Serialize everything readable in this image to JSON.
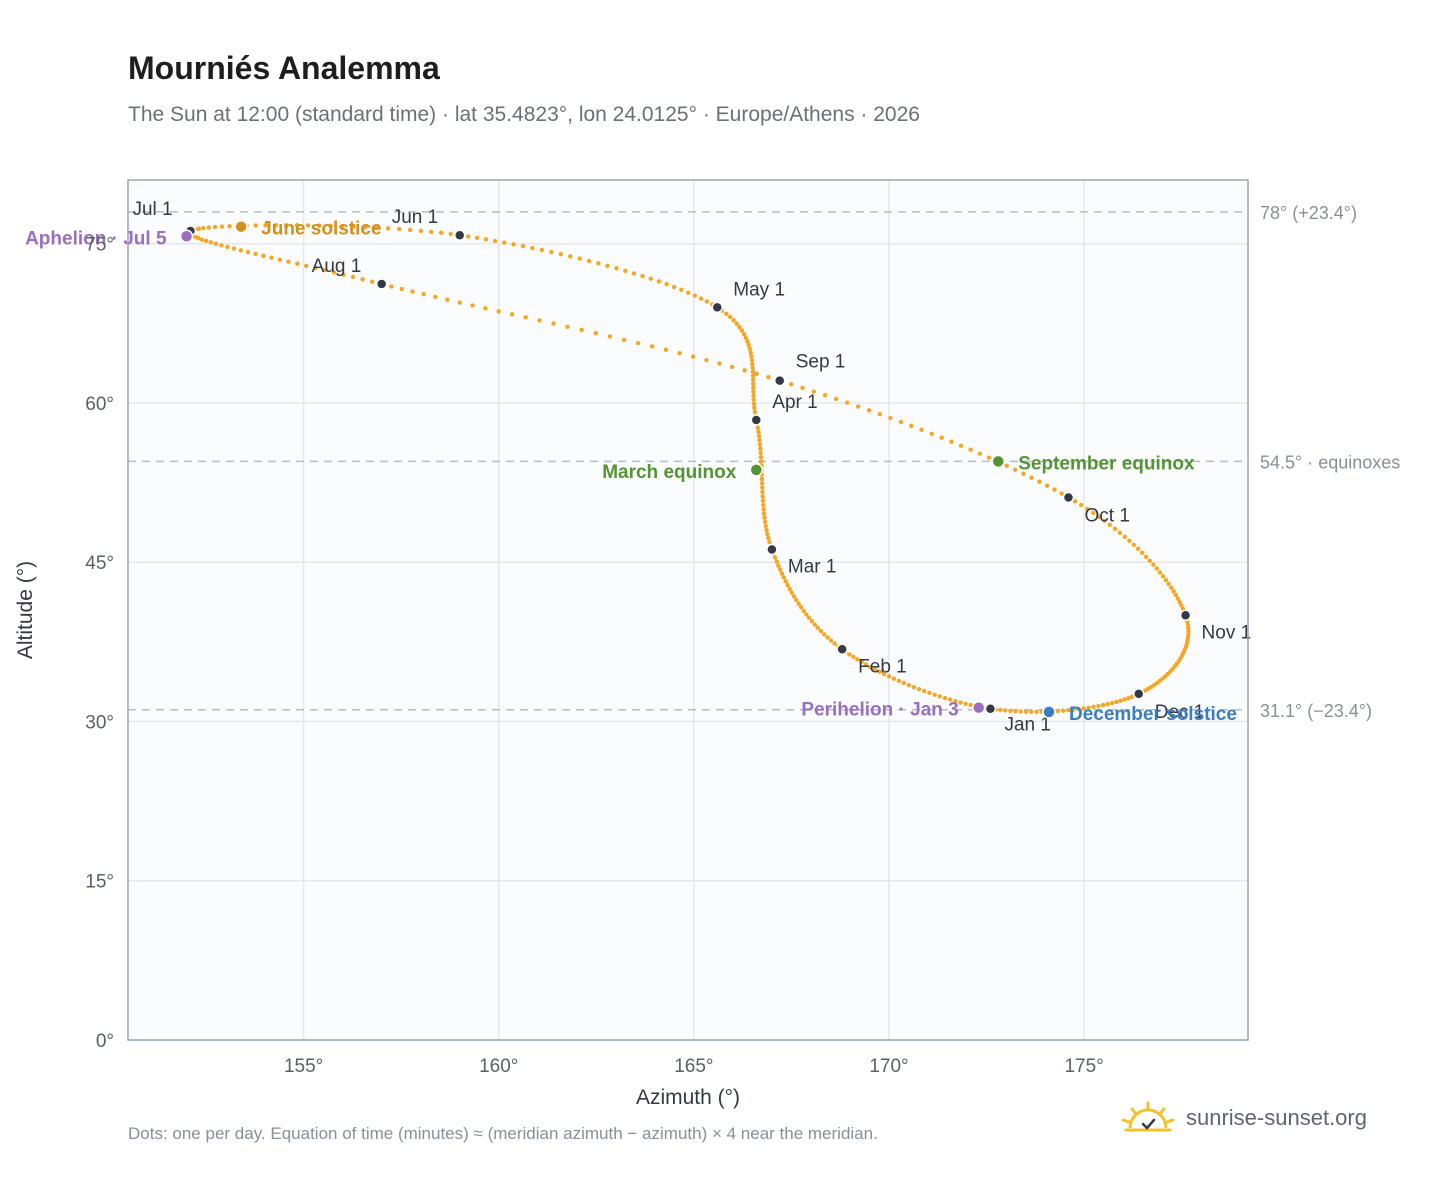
{
  "title": "Mourniés Analemma",
  "subtitle": "The Sun at 12:00 (standard time) · lat 35.4823°, lon 24.0125° · Europe/Athens · 2026",
  "footnote": "Dots: one per day. Equation of time (minutes) ≈ (meridian azimuth − azimuth) × 4 near the meridian.",
  "brand": {
    "text": "sunrise-sunset.org",
    "icon": "sun-logo-icon"
  },
  "colors": {
    "curve": "#f5a623",
    "month": "#333a44",
    "june": "#d4901c",
    "equinox": "#559433",
    "december": "#3a7ec2",
    "aphelion": "#9b6ec1",
    "grid": "#e4e8ee",
    "plot_bg": "#fafcfe",
    "frame": "#9aa6b4",
    "refline": "#b3bfcc"
  },
  "chart_data": {
    "type": "scatter",
    "xlabel": "Azimuth (°)",
    "ylabel": "Altitude (°)",
    "xlim": [
      150.5,
      179.2
    ],
    "ylim": [
      0,
      81
    ],
    "x_ticks": [
      155,
      160,
      165,
      170,
      175
    ],
    "x_tick_labels": [
      "155°",
      "160°",
      "165°",
      "170°",
      "175°"
    ],
    "y_ticks": [
      0,
      15,
      30,
      45,
      60,
      75
    ],
    "y_tick_labels": [
      "0°",
      "15°",
      "30°",
      "45°",
      "60°",
      "75°"
    ],
    "grid": true,
    "reference_lines": [
      {
        "y": 78.0,
        "label": "78° (+23.4°)"
      },
      {
        "y": 54.5,
        "label": "54.5° · equinoxes"
      },
      {
        "y": 31.1,
        "label": "31.1° (−23.4°)"
      }
    ],
    "series": [
      {
        "name": "",
        "daily": true,
        "monthly_points": [
          {
            "date": "Jan 1",
            "azimuth": 172.6,
            "altitude": 31.2
          },
          {
            "date": "Feb 1",
            "azimuth": 168.8,
            "altitude": 36.8
          },
          {
            "date": "Mar 1",
            "azimuth": 167.0,
            "altitude": 46.2
          },
          {
            "date": "Apr 1",
            "azimuth": 166.6,
            "altitude": 58.4
          },
          {
            "date": "May 1",
            "azimuth": 165.6,
            "altitude": 69.0
          },
          {
            "date": "Jun 1",
            "azimuth": 159.0,
            "altitude": 75.8
          },
          {
            "date": "Jul 1",
            "azimuth": 152.1,
            "altitude": 76.2
          },
          {
            "date": "Aug 1",
            "azimuth": 157.0,
            "altitude": 71.2
          },
          {
            "date": "Sep 1",
            "azimuth": 167.2,
            "altitude": 62.1
          },
          {
            "date": "Oct 1",
            "azimuth": 174.6,
            "altitude": 51.1
          },
          {
            "date": "Nov 1",
            "azimuth": 177.6,
            "altitude": 40.0
          },
          {
            "date": "Dec 1",
            "azimuth": 176.4,
            "altitude": 32.6
          }
        ]
      }
    ],
    "events": [
      {
        "label": "June solstice",
        "azimuth": 153.4,
        "altitude": 76.6,
        "color_key": "june"
      },
      {
        "label": "Aphelion · Jul 5",
        "azimuth": 152.0,
        "altitude": 75.7,
        "color_key": "aphelion"
      },
      {
        "label": "March equinox",
        "azimuth": 166.6,
        "altitude": 53.7,
        "color_key": "equinox"
      },
      {
        "label": "September equinox",
        "azimuth": 172.8,
        "altitude": 54.5,
        "color_key": "equinox"
      },
      {
        "label": "Perihelion · Jan 3",
        "azimuth": 172.3,
        "altitude": 31.3,
        "color_key": "aphelion"
      },
      {
        "label": "December solstice",
        "azimuth": 174.1,
        "altitude": 30.9,
        "color_key": "december"
      }
    ]
  }
}
